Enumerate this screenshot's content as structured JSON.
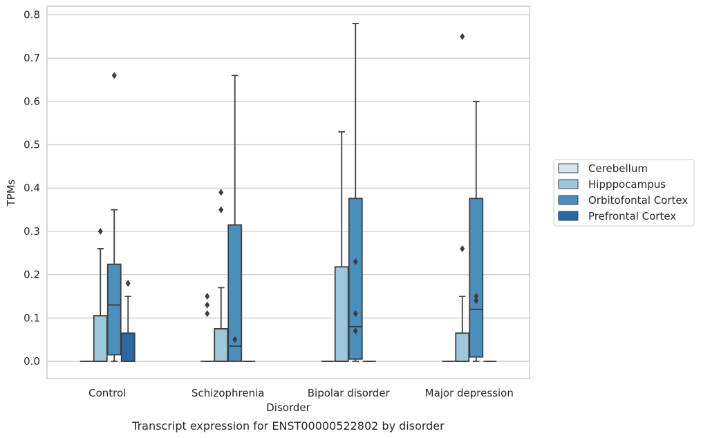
{
  "chart_data": {
    "type": "box",
    "title": "Transcript expression for ENST00000522802 by disorder",
    "xlabel": "Disorder",
    "ylabel": "TPMs",
    "ylim": [
      -0.04,
      0.82
    ],
    "yticks": [
      0.0,
      0.1,
      0.2,
      0.3,
      0.4,
      0.5,
      0.6,
      0.7,
      0.8
    ],
    "ytick_labels": [
      "0.0",
      "0.1",
      "0.2",
      "0.3",
      "0.4",
      "0.5",
      "0.6",
      "0.7",
      "0.8"
    ],
    "grid": "horizontal",
    "legend_position": "right",
    "categories": [
      "Control",
      "Schizophrenia",
      "Bipolar disorder",
      "Major depression"
    ],
    "series": [
      {
        "name": "Cerebellum",
        "color": "#d6e6f4",
        "boxes": [
          {
            "q1": 0,
            "median": 0,
            "q3": 0,
            "whislo": 0,
            "whishi": 0,
            "fliers": []
          },
          {
            "q1": 0,
            "median": 0,
            "q3": 0,
            "whislo": 0,
            "whishi": 0,
            "fliers": [
              0.11,
              0.13,
              0.15
            ]
          },
          {
            "q1": 0,
            "median": 0,
            "q3": 0,
            "whislo": 0,
            "whishi": 0,
            "fliers": []
          },
          {
            "q1": 0,
            "median": 0,
            "q3": 0,
            "whislo": 0,
            "whishi": 0,
            "fliers": []
          }
        ]
      },
      {
        "name": "Hipppocampus",
        "color": "#9dc7dd",
        "boxes": [
          {
            "q1": 0,
            "median": 0,
            "q3": 0.105,
            "whislo": 0,
            "whishi": 0.26,
            "fliers": [
              0.3
            ]
          },
          {
            "q1": 0,
            "median": 0,
            "q3": 0.075,
            "whislo": 0,
            "whishi": 0.17,
            "fliers": [
              0.35,
              0.39
            ]
          },
          {
            "q1": 0,
            "median": 0,
            "q3": 0.218,
            "whislo": 0,
            "whishi": 0.53,
            "fliers": []
          },
          {
            "q1": 0,
            "median": 0,
            "q3": 0.065,
            "whislo": 0,
            "whishi": 0.15,
            "fliers": [
              0.26,
              0.75
            ]
          }
        ]
      },
      {
        "name": "Orbitofontal Cortex",
        "color": "#4b8fbe",
        "boxes": [
          {
            "q1": 0.015,
            "median": 0.13,
            "q3": 0.224,
            "whislo": 0,
            "whishi": 0.35,
            "fliers": [
              0.66
            ]
          },
          {
            "q1": 0,
            "median": 0.035,
            "q3": 0.315,
            "whislo": 0,
            "whishi": 0.66,
            "fliers": [
              0.05
            ]
          },
          {
            "q1": 0.005,
            "median": 0.08,
            "q3": 0.376,
            "whislo": 0,
            "whishi": 0.78,
            "fliers": [
              0.07,
              0.11,
              0.23
            ]
          },
          {
            "q1": 0.01,
            "median": 0.12,
            "q3": 0.376,
            "whislo": 0,
            "whishi": 0.6,
            "fliers": [
              0.14,
              0.15
            ]
          }
        ]
      },
      {
        "name": "Prefrontal Cortex",
        "color": "#2a67a5",
        "boxes": [
          {
            "q1": 0,
            "median": 0,
            "q3": 0.065,
            "whislo": 0,
            "whishi": 0.15,
            "fliers": [
              0.18
            ]
          },
          {
            "q1": 0,
            "median": 0,
            "q3": 0,
            "whislo": 0,
            "whishi": 0,
            "fliers": []
          },
          {
            "q1": 0,
            "median": 0,
            "q3": 0,
            "whislo": 0,
            "whishi": 0,
            "fliers": []
          },
          {
            "q1": 0,
            "median": 0,
            "q3": 0,
            "whislo": 0,
            "whishi": 0,
            "fliers": []
          }
        ]
      }
    ]
  }
}
